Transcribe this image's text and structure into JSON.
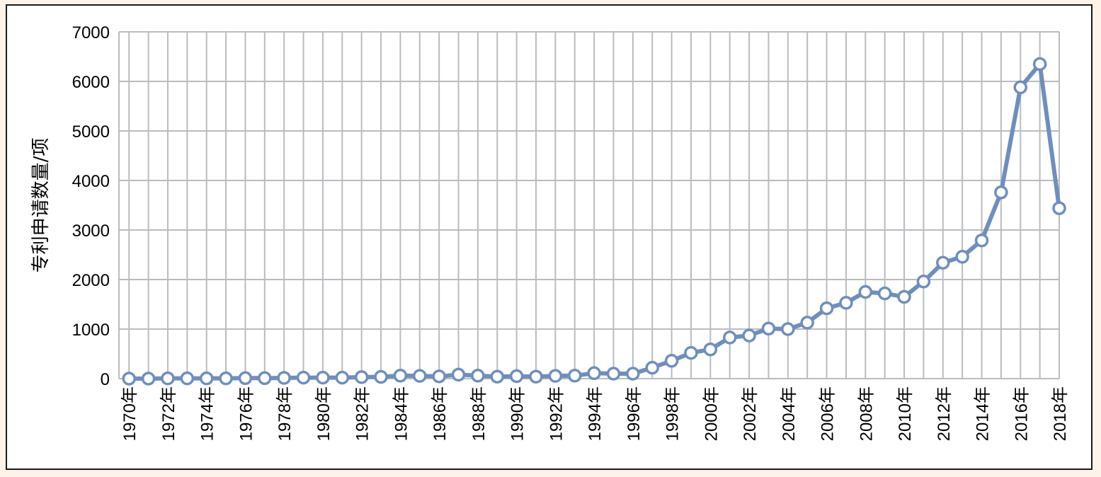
{
  "chart_data": {
    "type": "line",
    "title": "",
    "xlabel": "",
    "ylabel": "专利申请数量/项",
    "ylim": [
      0,
      7000
    ],
    "yticks": [
      0,
      1000,
      2000,
      3000,
      4000,
      5000,
      6000,
      7000
    ],
    "grid": true,
    "legend": "none",
    "x": [
      "1970年",
      "1971年",
      "1972年",
      "1973年",
      "1974年",
      "1975年",
      "1976年",
      "1977年",
      "1978年",
      "1979年",
      "1980年",
      "1981年",
      "1982年",
      "1983年",
      "1984年",
      "1985年",
      "1986年",
      "1987年",
      "1988年",
      "1989年",
      "1990年",
      "1991年",
      "1992年",
      "1993年",
      "1994年",
      "1995年",
      "1996年",
      "1997年",
      "1998年",
      "1999年",
      "2000年",
      "2001年",
      "2002年",
      "2003年",
      "2004年",
      "2005年",
      "2006年",
      "2007年",
      "2008年",
      "2009年",
      "2010年",
      "2011年",
      "2012年",
      "2013年",
      "2014年",
      "2015年",
      "2016年",
      "2017年",
      "2018年"
    ],
    "xtick_labels": [
      "1970年",
      "",
      "1972年",
      "",
      "1974年",
      "",
      "1976年",
      "",
      "1978年",
      "",
      "1980年",
      "",
      "1982年",
      "",
      "1984年",
      "",
      "1986年",
      "",
      "1988年",
      "",
      "1990年",
      "",
      "1992年",
      "",
      "1994年",
      "",
      "1996年",
      "",
      "1998年",
      "",
      "2000年",
      "",
      "2002年",
      "",
      "2004年",
      "",
      "2006年",
      "",
      "2008年",
      "",
      "2010年",
      "",
      "2012年",
      "",
      "2014年",
      "",
      "2016年",
      "",
      "2018年"
    ],
    "series": [
      {
        "values": [
          0,
          0,
          5,
          5,
          5,
          5,
          10,
          10,
          15,
          20,
          20,
          20,
          30,
          35,
          60,
          55,
          45,
          80,
          60,
          40,
          50,
          40,
          55,
          60,
          110,
          100,
          100,
          220,
          360,
          520,
          590,
          830,
          870,
          1010,
          1000,
          1130,
          1420,
          1530,
          1750,
          1720,
          1650,
          1960,
          2340,
          2460,
          2790,
          3760,
          5880,
          6350,
          3440
        ],
        "color": "#6e8fbe"
      }
    ]
  },
  "colors": {
    "line": "#6e8fbe",
    "grid": "#b9bcc0",
    "background": "#fdf3e8",
    "frame": "#1a1a1a"
  }
}
